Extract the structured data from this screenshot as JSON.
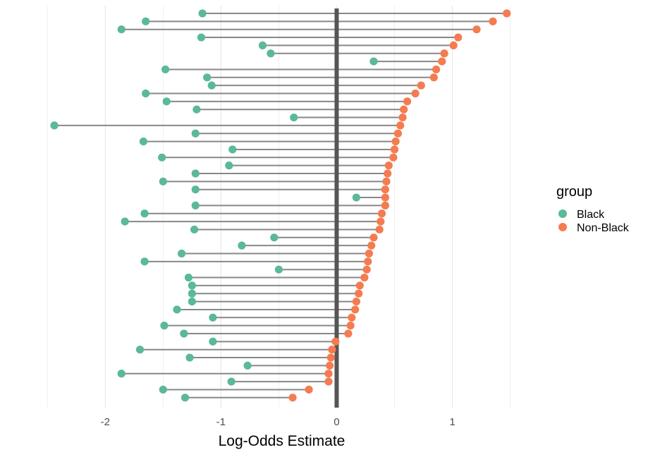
{
  "chart_data": {
    "type": "dumbbell",
    "xlabel": "Log-Odds Estimate",
    "ylabel": "",
    "xlim": [
      -2.55,
      1.6
    ],
    "x_ticks": [
      "-2",
      "-1",
      "0",
      "1"
    ],
    "x_tick_values": [
      -2,
      -1,
      0,
      1
    ],
    "grid": "vertical major and minor",
    "zero_line": 0,
    "legend": {
      "title": "group",
      "position": "right",
      "entries": [
        "Black",
        "Non-Black"
      ]
    },
    "colors": {
      "Black": "#5BB996",
      "Non-Black": "#F47C50",
      "segment": "#888888",
      "zero_line": "#555555",
      "grid": "#e8e8e8"
    },
    "series": [
      {
        "name": "Black",
        "values": [
          -1.16,
          -1.65,
          -1.86,
          -1.17,
          -0.64,
          -0.57,
          0.32,
          -1.48,
          -1.12,
          -1.08,
          -1.65,
          -1.47,
          -1.21,
          -0.37,
          -2.44,
          -1.22,
          -1.67,
          -0.9,
          -1.51,
          -0.93,
          -1.22,
          -1.5,
          -1.22,
          0.17,
          -1.22,
          -1.66,
          -1.83,
          -1.23,
          -0.54,
          -0.82,
          -1.34,
          -1.66,
          -0.5,
          -1.28,
          -1.25,
          -1.25,
          -1.25,
          -1.38,
          -1.07,
          -1.49,
          -1.32,
          -1.07,
          -1.7,
          -1.27,
          -0.77,
          -1.86,
          -0.91,
          -1.5,
          -1.31
        ]
      },
      {
        "name": "Non-Black",
        "values": [
          1.47,
          1.35,
          1.21,
          1.05,
          1.01,
          0.93,
          0.91,
          0.86,
          0.84,
          0.73,
          0.68,
          0.61,
          0.58,
          0.57,
          0.55,
          0.53,
          0.51,
          0.5,
          0.49,
          0.45,
          0.44,
          0.43,
          0.42,
          0.42,
          0.42,
          0.39,
          0.38,
          0.37,
          0.32,
          0.3,
          0.28,
          0.27,
          0.26,
          0.24,
          0.2,
          0.19,
          0.17,
          0.16,
          0.13,
          0.12,
          0.1,
          -0.01,
          -0.04,
          -0.05,
          -0.06,
          -0.07,
          -0.07,
          -0.24,
          -0.38
        ]
      }
    ]
  }
}
